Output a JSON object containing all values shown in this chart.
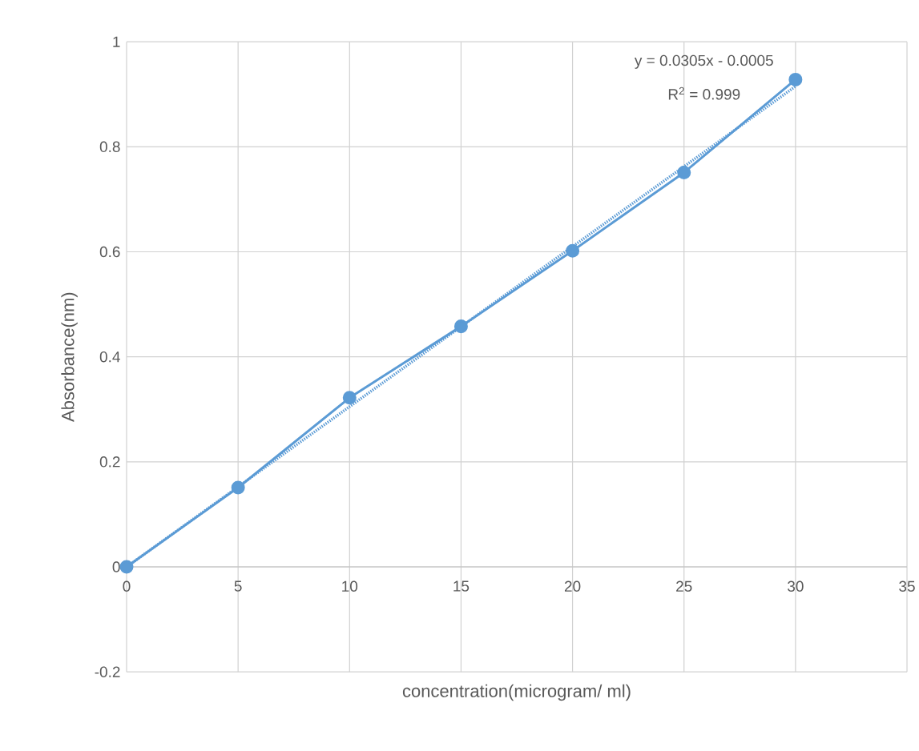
{
  "chart_data": {
    "type": "line",
    "xlabel": "concentration(microgram/ ml)",
    "ylabel": "Absorbance(nm)",
    "x": [
      0,
      5,
      10,
      15,
      20,
      25,
      30
    ],
    "series": [
      {
        "color": "#5b9bd5",
        "values": [
          0,
          0.151,
          0.322,
          0.458,
          0.602,
          0.751,
          0.928
        ],
        "marker": "circle",
        "line_style": "solid"
      },
      {
        "type": "line",
        "color": "#5b9bd5",
        "x": [
          0,
          30
        ],
        "values": [
          0,
          0.915
        ],
        "marker": "none",
        "line_style": "dotted"
      }
    ],
    "xlim": [
      0,
      35
    ],
    "ylim": [
      -0.2,
      1
    ],
    "xticks": [
      0,
      5,
      10,
      15,
      20,
      25,
      30,
      35
    ],
    "yticks": [
      -0.2,
      0,
      0.2,
      0.4,
      0.6,
      0.8,
      1
    ],
    "grid": true,
    "annotations": [
      "y = 0.0305x - 0.0005",
      "R$^{2}$ = 0.999"
    ]
  }
}
